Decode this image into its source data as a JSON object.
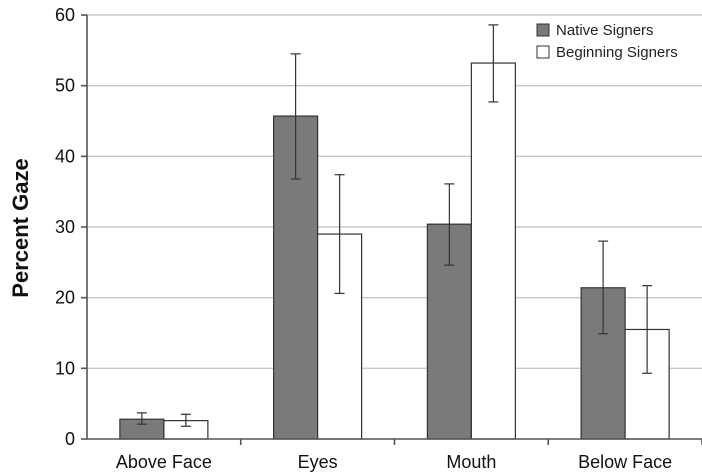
{
  "chart_data": {
    "type": "bar",
    "title": "",
    "xlabel": "",
    "ylabel": "Percent Gaze",
    "ylim": [
      0,
      60
    ],
    "yticks": [
      0,
      10,
      20,
      30,
      40,
      50,
      60
    ],
    "grid": true,
    "legend_position": "top-right",
    "categories": [
      "Above Face",
      "Eyes",
      "Mouth",
      "Below Face"
    ],
    "series": [
      {
        "name": "Native Signers",
        "color": "#7a7a7a",
        "values": [
          2.8,
          45.7,
          30.4,
          21.4
        ],
        "error_low": [
          2.1,
          36.8,
          24.6,
          14.9
        ],
        "error_high": [
          3.7,
          54.5,
          36.1,
          28.0
        ]
      },
      {
        "name": "Beginning Signers",
        "color": "#ffffff",
        "values": [
          2.6,
          29.0,
          53.2,
          15.5
        ],
        "error_low": [
          1.8,
          20.6,
          47.7,
          9.3
        ],
        "error_high": [
          3.5,
          37.4,
          58.6,
          21.7
        ]
      }
    ]
  }
}
